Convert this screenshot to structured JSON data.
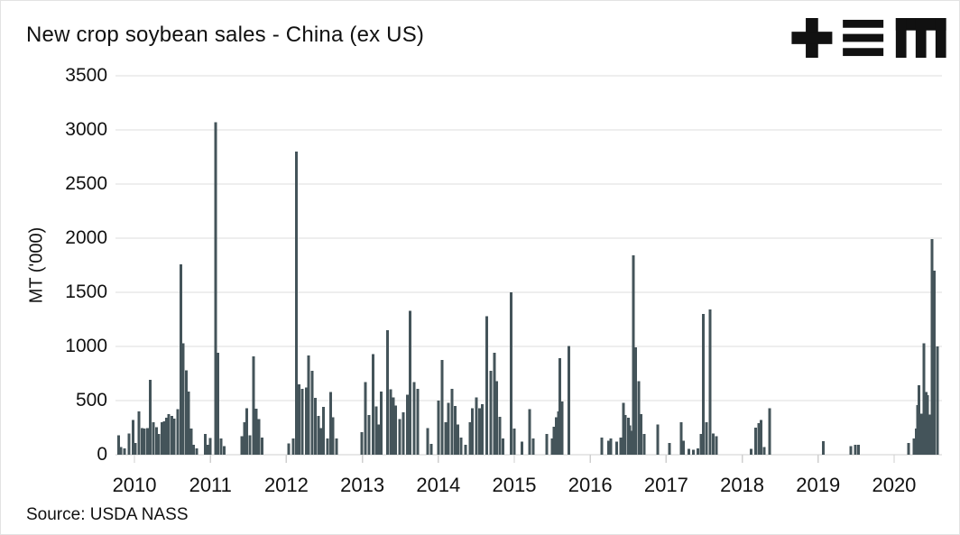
{
  "header": {
    "title": "New crop soybean sales - China (ex US)",
    "logo": {
      "glyphs": "+ three-bars M",
      "color": "#111111"
    }
  },
  "footer": {
    "source": "Source: USDA NASS"
  },
  "colors": {
    "background": "#ffffff",
    "bar": "#44545A",
    "gridline": "#dcdcdc",
    "baseline": "#cfcfcf",
    "text": "#111111"
  },
  "chart_data": {
    "type": "bar",
    "title": "New crop soybean sales - China (ex US)",
    "xlabel": "",
    "ylabel": "MT ('000)",
    "ylim": [
      0,
      3500
    ],
    "y_ticks": [
      0,
      500,
      1000,
      1500,
      2000,
      2500,
      3000,
      3500
    ],
    "x_ticks": [
      2010,
      2011,
      2012,
      2013,
      2014,
      2015,
      2016,
      2017,
      2018,
      2019,
      2020
    ],
    "x_range": [
      2009.75,
      2020.63
    ],
    "grid": "horizontal",
    "legend": "none",
    "unit": "thousand metric tons per week",
    "points": [
      [
        2009.79,
        180
      ],
      [
        2009.82,
        70
      ],
      [
        2009.87,
        60
      ],
      [
        2009.93,
        195
      ],
      [
        2009.98,
        320
      ],
      [
        2010.01,
        110
      ],
      [
        2010.06,
        400
      ],
      [
        2010.1,
        245
      ],
      [
        2010.13,
        240
      ],
      [
        2010.17,
        245
      ],
      [
        2010.21,
        690
      ],
      [
        2010.25,
        300
      ],
      [
        2010.29,
        255
      ],
      [
        2010.32,
        190
      ],
      [
        2010.36,
        300
      ],
      [
        2010.39,
        310
      ],
      [
        2010.42,
        340
      ],
      [
        2010.45,
        375
      ],
      [
        2010.49,
        360
      ],
      [
        2010.52,
        335
      ],
      [
        2010.57,
        420
      ],
      [
        2010.61,
        1760
      ],
      [
        2010.64,
        1030
      ],
      [
        2010.68,
        780
      ],
      [
        2010.71,
        585
      ],
      [
        2010.75,
        240
      ],
      [
        2010.78,
        90
      ],
      [
        2010.82,
        60
      ],
      [
        2010.93,
        190
      ],
      [
        2010.96,
        90
      ],
      [
        2011.0,
        155
      ],
      [
        2011.07,
        3070
      ],
      [
        2011.1,
        940
      ],
      [
        2011.14,
        150
      ],
      [
        2011.18,
        80
      ],
      [
        2011.41,
        170
      ],
      [
        2011.45,
        300
      ],
      [
        2011.48,
        430
      ],
      [
        2011.52,
        180
      ],
      [
        2011.57,
        910
      ],
      [
        2011.6,
        425
      ],
      [
        2011.64,
        330
      ],
      [
        2011.68,
        160
      ],
      [
        2012.03,
        105
      ],
      [
        2012.09,
        150
      ],
      [
        2012.13,
        2800
      ],
      [
        2012.17,
        650
      ],
      [
        2012.21,
        610
      ],
      [
        2012.26,
        620
      ],
      [
        2012.29,
        915
      ],
      [
        2012.34,
        775
      ],
      [
        2012.38,
        525
      ],
      [
        2012.42,
        360
      ],
      [
        2012.46,
        245
      ],
      [
        2012.49,
        440
      ],
      [
        2012.54,
        150
      ],
      [
        2012.58,
        580
      ],
      [
        2012.61,
        345
      ],
      [
        2012.66,
        150
      ],
      [
        2012.99,
        210
      ],
      [
        2013.04,
        670
      ],
      [
        2013.09,
        365
      ],
      [
        2013.14,
        930
      ],
      [
        2013.18,
        445
      ],
      [
        2013.22,
        280
      ],
      [
        2013.25,
        585
      ],
      [
        2013.33,
        1150
      ],
      [
        2013.37,
        605
      ],
      [
        2013.41,
        530
      ],
      [
        2013.44,
        455
      ],
      [
        2013.49,
        330
      ],
      [
        2013.54,
        390
      ],
      [
        2013.59,
        555
      ],
      [
        2013.63,
        1330
      ],
      [
        2013.68,
        670
      ],
      [
        2013.73,
        610
      ],
      [
        2013.86,
        245
      ],
      [
        2013.91,
        100
      ],
      [
        2014.0,
        500
      ],
      [
        2014.05,
        875
      ],
      [
        2014.1,
        300
      ],
      [
        2014.13,
        480
      ],
      [
        2014.18,
        610
      ],
      [
        2014.22,
        450
      ],
      [
        2014.26,
        280
      ],
      [
        2014.3,
        160
      ],
      [
        2014.36,
        90
      ],
      [
        2014.42,
        300
      ],
      [
        2014.45,
        430
      ],
      [
        2014.5,
        530
      ],
      [
        2014.54,
        430
      ],
      [
        2014.58,
        465
      ],
      [
        2014.64,
        1280
      ],
      [
        2014.69,
        775
      ],
      [
        2014.74,
        940
      ],
      [
        2014.77,
        680
      ],
      [
        2014.81,
        350
      ],
      [
        2014.85,
        150
      ],
      [
        2014.96,
        1500
      ],
      [
        2015.0,
        240
      ],
      [
        2015.1,
        120
      ],
      [
        2015.2,
        420
      ],
      [
        2015.25,
        150
      ],
      [
        2015.43,
        190
      ],
      [
        2015.5,
        150
      ],
      [
        2015.52,
        260
      ],
      [
        2015.55,
        345
      ],
      [
        2015.58,
        400
      ],
      [
        2015.6,
        890
      ],
      [
        2015.63,
        490
      ],
      [
        2015.72,
        1005
      ],
      [
        2016.15,
        160
      ],
      [
        2016.24,
        130
      ],
      [
        2016.27,
        150
      ],
      [
        2016.35,
        120
      ],
      [
        2016.4,
        160
      ],
      [
        2016.44,
        480
      ],
      [
        2016.46,
        365
      ],
      [
        2016.5,
        340
      ],
      [
        2016.52,
        270
      ],
      [
        2016.54,
        220
      ],
      [
        2016.57,
        1840
      ],
      [
        2016.6,
        990
      ],
      [
        2016.64,
        680
      ],
      [
        2016.67,
        375
      ],
      [
        2016.71,
        190
      ],
      [
        2016.89,
        280
      ],
      [
        2017.04,
        110
      ],
      [
        2017.2,
        300
      ],
      [
        2017.23,
        130
      ],
      [
        2017.3,
        55
      ],
      [
        2017.36,
        45
      ],
      [
        2017.42,
        60
      ],
      [
        2017.46,
        190
      ],
      [
        2017.49,
        1300
      ],
      [
        2017.53,
        300
      ],
      [
        2017.58,
        1340
      ],
      [
        2017.62,
        195
      ],
      [
        2017.66,
        170
      ],
      [
        2018.12,
        55
      ],
      [
        2018.18,
        250
      ],
      [
        2018.22,
        290
      ],
      [
        2018.25,
        320
      ],
      [
        2018.29,
        70
      ],
      [
        2018.36,
        430
      ],
      [
        2019.07,
        125
      ],
      [
        2019.43,
        80
      ],
      [
        2019.49,
        90
      ],
      [
        2019.53,
        90
      ],
      [
        2020.19,
        110
      ],
      [
        2020.26,
        150
      ],
      [
        2020.29,
        240
      ],
      [
        2020.31,
        460
      ],
      [
        2020.33,
        640
      ],
      [
        2020.36,
        380
      ],
      [
        2020.39,
        1030
      ],
      [
        2020.42,
        580
      ],
      [
        2020.44,
        550
      ],
      [
        2020.47,
        370
      ],
      [
        2020.5,
        1990
      ],
      [
        2020.53,
        1700
      ],
      [
        2020.57,
        1000
      ]
    ]
  }
}
